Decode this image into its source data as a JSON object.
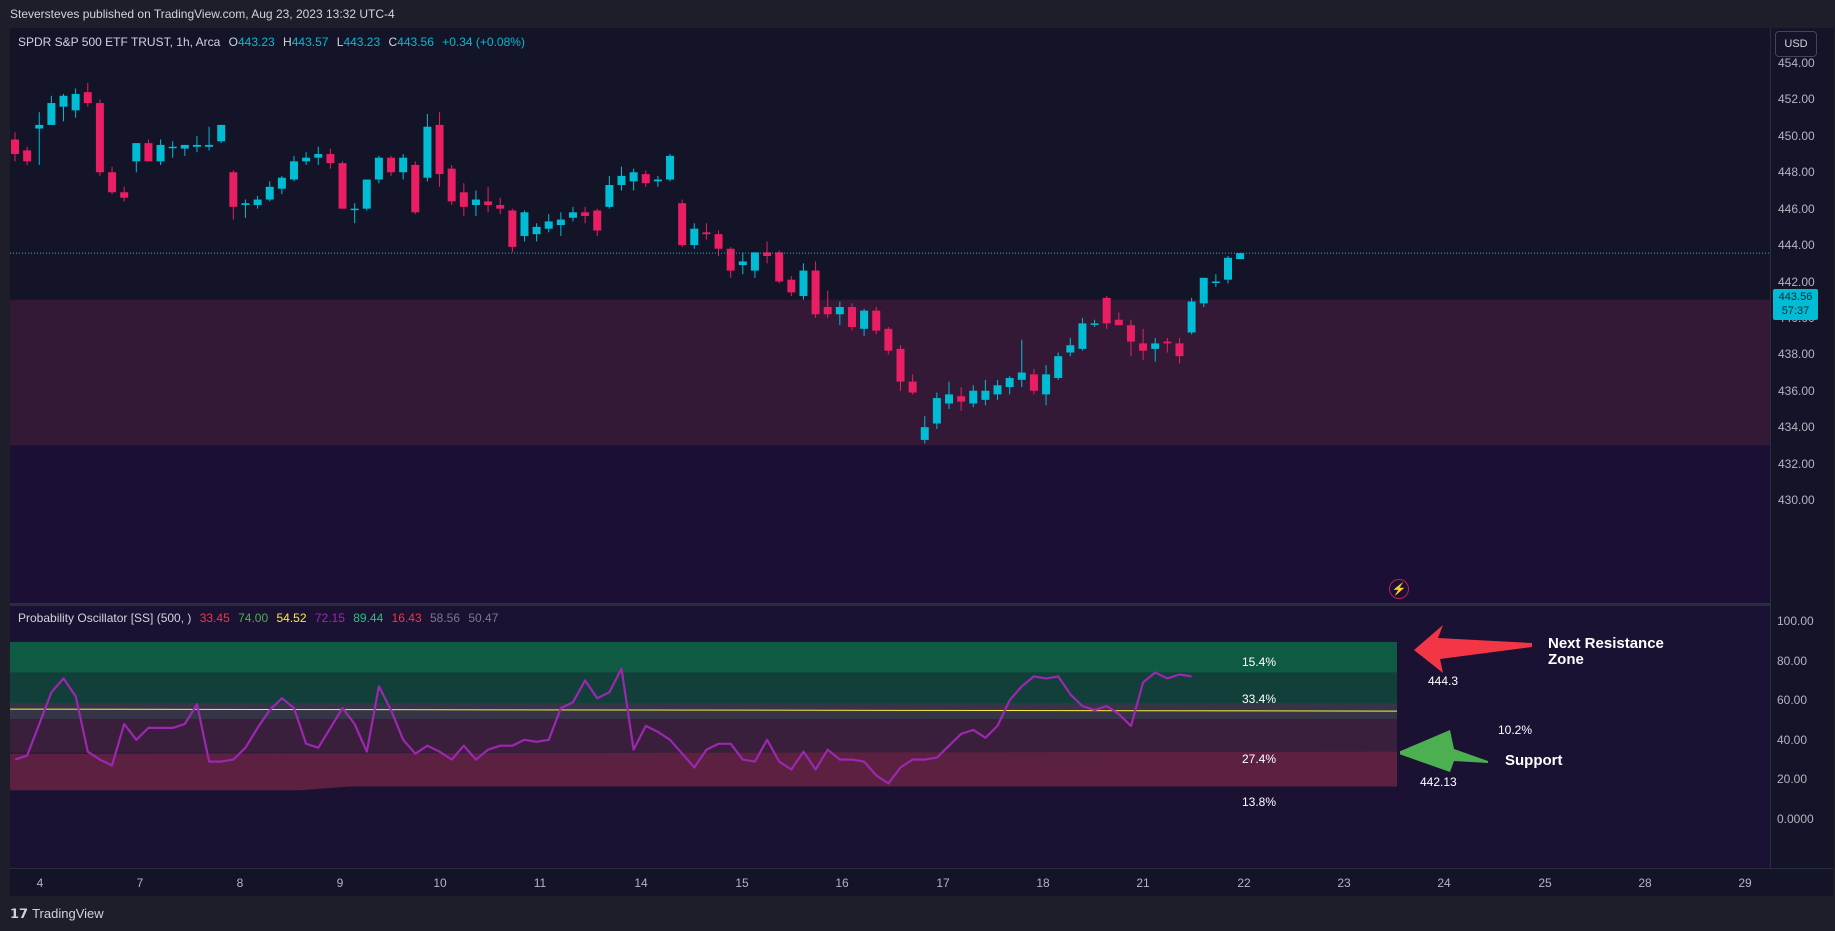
{
  "header": {
    "publish_text": "Steversteves published on TradingView.com, Aug 23, 2023 13:32 UTC-4"
  },
  "legend_main": {
    "symbol": "SPDR S&P 500 ETF TRUST, 1h, Arca",
    "o_label": "O",
    "o_value": "443.23",
    "h_label": "H",
    "h_value": "443.57",
    "l_label": "L",
    "l_value": "443.23",
    "c_label": "C",
    "c_value": "443.56",
    "change": "+0.34 (+0.08%)"
  },
  "legend_osc": {
    "name": "Probability Oscillator [SS] (500, )",
    "values": [
      {
        "text": "33.45",
        "color": "#f23645"
      },
      {
        "text": "74.00",
        "color": "#4caf50"
      },
      {
        "text": "54.52",
        "color": "#ffeb3b"
      },
      {
        "text": "72.15",
        "color": "#9c27b0"
      },
      {
        "text": "89.44",
        "color": "#26c281"
      },
      {
        "text": "16.43",
        "color": "#f23645"
      },
      {
        "text": "58.56",
        "color": "#787b86"
      },
      {
        "text": "50.47",
        "color": "#787b86"
      }
    ]
  },
  "price_axis": {
    "currency": "USD",
    "labels": [
      "454.00",
      "452.00",
      "450.00",
      "448.00",
      "446.00",
      "444.00",
      "442.00",
      "440.00",
      "438.00",
      "436.00",
      "434.00",
      "432.00",
      "430.00"
    ],
    "last_price": "443.56",
    "countdown": "57:37"
  },
  "osc_axis": {
    "labels": [
      "100.00",
      "80.00",
      "60.00",
      "40.00",
      "20.00",
      "0.0000"
    ]
  },
  "time_axis": {
    "labels": [
      "4",
      "7",
      "8",
      "9",
      "10",
      "11",
      "14",
      "15",
      "16",
      "17",
      "18",
      "21",
      "22",
      "23",
      "24",
      "25",
      "28",
      "29"
    ]
  },
  "zones": {
    "z1": "15.4%",
    "z2": "33.4%",
    "z3": "27.4%",
    "z4": "13.8%",
    "side_pct": "10.2%",
    "upper_price": "444.3",
    "lower_price": "442.13"
  },
  "annotations": {
    "resistance": [
      "Next Resistance",
      "Zone"
    ],
    "support": "Support"
  },
  "footer": {
    "logo_mark": "𝟭𝟳",
    "logo_text": "TradingView"
  },
  "colors": {
    "up": "#00bcd4",
    "down": "#e91e63",
    "osc_line": "#9c27b0",
    "mid_line": "#ffeb3b"
  },
  "chart_data": [
    {
      "type": "candlestick",
      "title": "SPDR S&P 500 ETF TRUST, 1h, Arca",
      "ylim": [
        429,
        456
      ],
      "candles": [
        {
          "o": 449.8,
          "h": 450.2,
          "l": 448.6,
          "c": 449.0
        },
        {
          "o": 449.2,
          "h": 449.4,
          "l": 448.4,
          "c": 448.6
        },
        {
          "o": 450.4,
          "h": 451.3,
          "l": 448.4,
          "c": 450.6
        },
        {
          "o": 450.6,
          "h": 452.2,
          "l": 450.6,
          "c": 451.8
        },
        {
          "o": 451.6,
          "h": 452.3,
          "l": 450.8,
          "c": 452.2
        },
        {
          "o": 451.4,
          "h": 452.6,
          "l": 451.0,
          "c": 452.3
        },
        {
          "o": 452.4,
          "h": 452.9,
          "l": 451.6,
          "c": 451.8
        },
        {
          "o": 451.8,
          "h": 452.0,
          "l": 447.8,
          "c": 448.0
        },
        {
          "o": 448.0,
          "h": 448.3,
          "l": 446.8,
          "c": 446.9
        },
        {
          "o": 446.9,
          "h": 447.2,
          "l": 446.4,
          "c": 446.6
        },
        {
          "o": 448.6,
          "h": 449.6,
          "l": 448.0,
          "c": 449.6
        },
        {
          "o": 449.6,
          "h": 449.8,
          "l": 448.6,
          "c": 448.6
        },
        {
          "o": 448.6,
          "h": 449.8,
          "l": 448.4,
          "c": 449.5
        },
        {
          "o": 449.4,
          "h": 449.7,
          "l": 448.8,
          "c": 449.4
        },
        {
          "o": 449.3,
          "h": 449.5,
          "l": 448.9,
          "c": 449.5
        },
        {
          "o": 449.4,
          "h": 450.0,
          "l": 449.1,
          "c": 449.5
        },
        {
          "o": 449.4,
          "h": 450.5,
          "l": 449.2,
          "c": 449.5
        },
        {
          "o": 449.7,
          "h": 450.6,
          "l": 449.6,
          "c": 450.6
        },
        {
          "o": 448.0,
          "h": 448.1,
          "l": 445.4,
          "c": 446.1
        },
        {
          "o": 446.2,
          "h": 446.5,
          "l": 445.5,
          "c": 446.3
        },
        {
          "o": 446.2,
          "h": 446.7,
          "l": 446.0,
          "c": 446.5
        },
        {
          "o": 446.5,
          "h": 447.5,
          "l": 446.4,
          "c": 447.2
        },
        {
          "o": 447.1,
          "h": 447.8,
          "l": 446.8,
          "c": 447.7
        },
        {
          "o": 447.6,
          "h": 448.9,
          "l": 447.5,
          "c": 448.6
        },
        {
          "o": 448.6,
          "h": 449.1,
          "l": 448.4,
          "c": 448.8
        },
        {
          "o": 448.8,
          "h": 449.4,
          "l": 448.4,
          "c": 449.0
        },
        {
          "o": 449.0,
          "h": 449.3,
          "l": 448.2,
          "c": 448.5
        },
        {
          "o": 448.5,
          "h": 448.6,
          "l": 446.0,
          "c": 446.0
        },
        {
          "o": 446.0,
          "h": 446.3,
          "l": 445.2,
          "c": 446.0
        },
        {
          "o": 446.0,
          "h": 447.6,
          "l": 445.9,
          "c": 447.6
        },
        {
          "o": 447.6,
          "h": 448.9,
          "l": 447.4,
          "c": 448.8
        },
        {
          "o": 448.8,
          "h": 448.9,
          "l": 447.8,
          "c": 448.0
        },
        {
          "o": 448.0,
          "h": 449.0,
          "l": 447.6,
          "c": 448.8
        },
        {
          "o": 448.4,
          "h": 448.6,
          "l": 445.7,
          "c": 445.8
        },
        {
          "o": 447.7,
          "h": 451.2,
          "l": 447.5,
          "c": 450.5
        },
        {
          "o": 450.6,
          "h": 451.3,
          "l": 447.2,
          "c": 447.9
        },
        {
          "o": 448.2,
          "h": 448.4,
          "l": 446.2,
          "c": 446.4
        },
        {
          "o": 446.9,
          "h": 447.4,
          "l": 445.6,
          "c": 446.1
        },
        {
          "o": 446.2,
          "h": 447.0,
          "l": 445.6,
          "c": 446.5
        },
        {
          "o": 446.4,
          "h": 447.2,
          "l": 445.8,
          "c": 446.2
        },
        {
          "o": 446.2,
          "h": 446.6,
          "l": 445.7,
          "c": 446.0
        },
        {
          "o": 445.9,
          "h": 446.0,
          "l": 443.6,
          "c": 443.9
        },
        {
          "o": 444.5,
          "h": 445.9,
          "l": 444.2,
          "c": 445.8
        },
        {
          "o": 444.6,
          "h": 445.2,
          "l": 444.2,
          "c": 445.0
        },
        {
          "o": 444.9,
          "h": 445.7,
          "l": 444.7,
          "c": 445.3
        },
        {
          "o": 445.1,
          "h": 445.8,
          "l": 444.5,
          "c": 445.4
        },
        {
          "o": 445.5,
          "h": 446.1,
          "l": 445.3,
          "c": 445.8
        },
        {
          "o": 445.8,
          "h": 446.1,
          "l": 445.2,
          "c": 445.6
        },
        {
          "o": 445.9,
          "h": 446.0,
          "l": 444.5,
          "c": 444.8
        },
        {
          "o": 446.1,
          "h": 447.8,
          "l": 446.0,
          "c": 447.3
        },
        {
          "o": 447.3,
          "h": 448.3,
          "l": 447.0,
          "c": 447.8
        },
        {
          "o": 447.5,
          "h": 448.2,
          "l": 447.0,
          "c": 448.0
        },
        {
          "o": 447.9,
          "h": 448.1,
          "l": 447.2,
          "c": 447.4
        },
        {
          "o": 447.5,
          "h": 447.8,
          "l": 447.2,
          "c": 447.6
        },
        {
          "o": 447.6,
          "h": 449.0,
          "l": 447.5,
          "c": 448.9
        },
        {
          "o": 446.3,
          "h": 446.5,
          "l": 443.9,
          "c": 444.0
        },
        {
          "o": 444.0,
          "h": 445.2,
          "l": 443.8,
          "c": 444.9
        },
        {
          "o": 444.7,
          "h": 445.2,
          "l": 444.3,
          "c": 444.6
        },
        {
          "o": 444.6,
          "h": 444.8,
          "l": 443.4,
          "c": 443.8
        },
        {
          "o": 443.8,
          "h": 443.9,
          "l": 442.2,
          "c": 442.6
        },
        {
          "o": 442.9,
          "h": 443.6,
          "l": 442.4,
          "c": 443.1
        },
        {
          "o": 442.6,
          "h": 443.6,
          "l": 442.2,
          "c": 443.6
        },
        {
          "o": 443.6,
          "h": 444.2,
          "l": 443.0,
          "c": 443.4
        },
        {
          "o": 443.6,
          "h": 443.7,
          "l": 441.9,
          "c": 442.0
        },
        {
          "o": 442.1,
          "h": 442.3,
          "l": 441.2,
          "c": 441.4
        },
        {
          "o": 441.2,
          "h": 443.0,
          "l": 441.0,
          "c": 442.6
        },
        {
          "o": 442.6,
          "h": 443.1,
          "l": 440.0,
          "c": 440.2
        },
        {
          "o": 440.6,
          "h": 441.5,
          "l": 440.0,
          "c": 440.2
        },
        {
          "o": 440.2,
          "h": 440.9,
          "l": 439.6,
          "c": 440.6
        },
        {
          "o": 440.6,
          "h": 440.8,
          "l": 439.3,
          "c": 439.5
        },
        {
          "o": 439.4,
          "h": 440.5,
          "l": 439.0,
          "c": 440.4
        },
        {
          "o": 440.4,
          "h": 440.6,
          "l": 439.1,
          "c": 439.3
        },
        {
          "o": 439.4,
          "h": 439.5,
          "l": 438.0,
          "c": 438.2
        },
        {
          "o": 438.3,
          "h": 438.5,
          "l": 436.0,
          "c": 436.5
        },
        {
          "o": 436.5,
          "h": 436.9,
          "l": 435.8,
          "c": 435.9
        },
        {
          "o": 433.3,
          "h": 434.6,
          "l": 433.1,
          "c": 434.0
        },
        {
          "o": 434.2,
          "h": 435.9,
          "l": 433.9,
          "c": 435.6
        },
        {
          "o": 435.3,
          "h": 436.5,
          "l": 435.0,
          "c": 435.8
        },
        {
          "o": 435.7,
          "h": 436.2,
          "l": 434.9,
          "c": 435.4
        },
        {
          "o": 435.3,
          "h": 436.3,
          "l": 435.1,
          "c": 436.0
        },
        {
          "o": 435.5,
          "h": 436.6,
          "l": 435.2,
          "c": 436.0
        },
        {
          "o": 435.8,
          "h": 436.6,
          "l": 435.5,
          "c": 436.3
        },
        {
          "o": 436.2,
          "h": 436.8,
          "l": 435.8,
          "c": 436.7
        },
        {
          "o": 436.6,
          "h": 438.8,
          "l": 436.2,
          "c": 437.0
        },
        {
          "o": 436.9,
          "h": 437.2,
          "l": 435.8,
          "c": 436.0
        },
        {
          "o": 435.8,
          "h": 437.4,
          "l": 435.2,
          "c": 436.9
        },
        {
          "o": 436.7,
          "h": 438.1,
          "l": 436.6,
          "c": 437.9
        },
        {
          "o": 438.1,
          "h": 438.9,
          "l": 437.9,
          "c": 438.5
        },
        {
          "o": 438.3,
          "h": 440.0,
          "l": 438.2,
          "c": 439.7
        },
        {
          "o": 439.7,
          "h": 439.9,
          "l": 439.5,
          "c": 439.7
        },
        {
          "o": 441.1,
          "h": 441.2,
          "l": 439.4,
          "c": 439.7
        },
        {
          "o": 439.9,
          "h": 440.3,
          "l": 439.6,
          "c": 439.6
        },
        {
          "o": 439.6,
          "h": 439.9,
          "l": 437.9,
          "c": 438.7
        },
        {
          "o": 438.6,
          "h": 439.4,
          "l": 437.7,
          "c": 438.2
        },
        {
          "o": 438.3,
          "h": 438.9,
          "l": 437.6,
          "c": 438.6
        },
        {
          "o": 438.7,
          "h": 438.9,
          "l": 438.1,
          "c": 438.6
        },
        {
          "o": 438.6,
          "h": 438.9,
          "l": 437.5,
          "c": 437.9
        },
        {
          "o": 439.2,
          "h": 441.1,
          "l": 439.1,
          "c": 440.9
        },
        {
          "o": 440.8,
          "h": 442.2,
          "l": 440.6,
          "c": 442.2
        },
        {
          "o": 442.0,
          "h": 442.4,
          "l": 441.7,
          "c": 442.0
        },
        {
          "o": 442.1,
          "h": 443.4,
          "l": 441.9,
          "c": 443.3
        },
        {
          "o": 443.23,
          "h": 443.57,
          "l": 443.23,
          "c": 443.56
        }
      ]
    },
    {
      "type": "line",
      "title": "Probability Oscillator [SS] (500, )",
      "ylim": [
        0,
        100
      ],
      "series": [
        {
          "values": [
            30,
            32,
            48,
            64,
            71,
            62,
            34,
            30,
            27,
            48,
            40,
            46,
            46,
            46,
            48,
            58,
            29,
            29,
            30,
            36,
            46,
            55,
            61,
            56,
            38,
            36,
            46,
            56,
            48,
            34,
            67,
            55,
            40,
            33,
            37,
            34,
            30,
            37,
            30,
            35,
            37,
            37,
            40,
            39,
            40,
            56,
            59,
            70,
            61,
            64,
            76,
            35,
            47,
            44,
            40,
            33,
            26,
            35,
            38,
            38,
            30,
            29,
            40,
            29,
            25,
            34,
            25,
            35,
            30,
            30,
            29,
            22,
            18,
            26,
            30,
            30,
            31,
            37,
            43,
            45,
            41,
            47,
            60,
            67,
            72,
            71,
            72,
            63,
            57,
            55,
            57,
            53,
            47,
            69,
            74,
            71,
            73,
            72
          ]
        }
      ]
    }
  ]
}
